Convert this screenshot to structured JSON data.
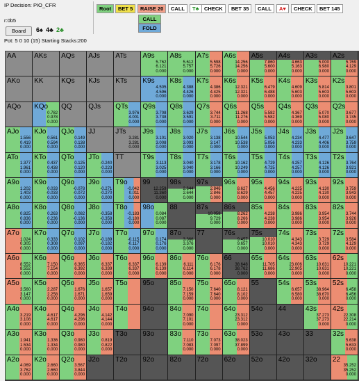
{
  "info": {
    "decision": "IP Decision:  PIO_CFR",
    "rake": "r:0b5",
    "board_button": "Board",
    "board_cards": [
      {
        "text": "6♠",
        "color": "#000000"
      },
      {
        "text": "4♣",
        "color": "#000000"
      },
      {
        "text": "2♣",
        "color": "#228b22"
      }
    ],
    "pot": "Pot: 5 0 10 (15) Starting Stacks:200"
  },
  "actions": [
    {
      "label": "Root",
      "bg": "#7fd17f"
    },
    {
      "label": "BET 5",
      "bg": "#f0e04a"
    },
    {
      "label": "RAISE 20",
      "bg": "#f1a08a"
    },
    {
      "label": "CALL",
      "bg": "#ffffff"
    },
    {
      "label": "T♣",
      "bg": "#ffffff",
      "color": "#1a8a1a"
    },
    {
      "label": "CHECK",
      "bg": "#ffffff"
    },
    {
      "label": "BET 35",
      "bg": "#ffffff"
    },
    {
      "label": "CALL",
      "bg": "#ffffff"
    },
    {
      "label": "A♥",
      "bg": "#ffffff",
      "color": "#d01010"
    },
    {
      "label": "CHECK",
      "bg": "#ffffff"
    },
    {
      "label": "BET 145",
      "bg": "#ffffff"
    }
  ],
  "sub_actions": [
    {
      "label": "CALL",
      "bg": "#7fd17f"
    },
    {
      "label": "FOLD",
      "bg": "#6fa9d8"
    }
  ],
  "colors": {
    "gray": "#8c8c8c",
    "green": "#7fd17f",
    "red": "#ec8d72",
    "blue": "#6fa9d8",
    "dark": "#555555"
  },
  "hands": [
    [
      "AA",
      "AKs",
      "AQs",
      "AJs",
      "ATs",
      "A9s",
      "A8s",
      "A7s",
      "A6s",
      "A5s",
      "A4s",
      "A3s",
      "A2s"
    ],
    [
      "AKo",
      "KK",
      "KQs",
      "KJs",
      "KTs",
      "K9s",
      "K8s",
      "K7s",
      "K6s",
      "K5s",
      "K4s",
      "K3s",
      "K2s"
    ],
    [
      "AQo",
      "KQo",
      "QQ",
      "QJs",
      "QTs",
      "Q9s",
      "Q8s",
      "Q7s",
      "Q6s",
      "Q5s",
      "Q4s",
      "Q3s",
      "Q2s"
    ],
    [
      "AJo",
      "KJo",
      "QJo",
      "JJ",
      "JTs",
      "J9s",
      "J8s",
      "J7s",
      "J6s",
      "J5s",
      "J4s",
      "J3s",
      "J2s"
    ],
    [
      "ATo",
      "KTo",
      "QTo",
      "JTo",
      "TT",
      "T9s",
      "T8s",
      "T7s",
      "T6s",
      "T5s",
      "T4s",
      "T3s",
      "T2s"
    ],
    [
      "A9o",
      "K9o",
      "Q9o",
      "J9o",
      "T9o",
      "99",
      "98s",
      "97s",
      "96s",
      "95s",
      "94s",
      "93s",
      "92s"
    ],
    [
      "A8o",
      "K8o",
      "Q8o",
      "J8o",
      "T8o",
      "98o",
      "88",
      "87s",
      "86s",
      "85s",
      "84s",
      "83s",
      "82s"
    ],
    [
      "A7o",
      "K7o",
      "Q7o",
      "J7o",
      "T7o",
      "97o",
      "87o",
      "77",
      "76s",
      "75s",
      "74s",
      "73s",
      "72s"
    ],
    [
      "A6o",
      "K6o",
      "Q6o",
      "J6o",
      "T6o",
      "96o",
      "86o",
      "76o",
      "66",
      "65s",
      "64s",
      "63s",
      "62s"
    ],
    [
      "A5o",
      "K5o",
      "Q5o",
      "J5o",
      "T5o",
      "95o",
      "85o",
      "75o",
      "65o",
      "55",
      "54s",
      "53s",
      "52s"
    ],
    [
      "A4o",
      "K4o",
      "Q4o",
      "J4o",
      "T4o",
      "94o",
      "84o",
      "74o",
      "64o",
      "54o",
      "44",
      "43s",
      "42s"
    ],
    [
      "A3o",
      "K3o",
      "Q3o",
      "J3o",
      "T3o",
      "93o",
      "83o",
      "73o",
      "63o",
      "53o",
      "43o",
      "33",
      "32s"
    ],
    [
      "A2o",
      "K2o",
      "Q2o",
      "J2o",
      "T2o",
      "92o",
      "82o",
      "72o",
      "62o",
      "52o",
      "42o",
      "32o",
      "22"
    ]
  ],
  "cells": [
    [
      "g",
      "g",
      "g",
      "g",
      "g",
      "G",
      "G",
      "GR",
      "GR",
      "GRd",
      "GRd",
      "GRd",
      "GRd"
    ],
    [
      "g",
      "g",
      "g",
      "g",
      "g",
      "B",
      "GB",
      "GR",
      "GR",
      "GR",
      "GR",
      "GR",
      "GR"
    ],
    [
      "g",
      "BG",
      "g",
      "g",
      "GB",
      "GB",
      "GB",
      "GR",
      "GR",
      "GR",
      "GR",
      "GR",
      "GR"
    ],
    [
      "GB",
      "GB",
      "GB",
      "g",
      "g",
      "GB",
      "GB",
      "GB",
      "GB",
      "GB",
      "GB",
      "GB",
      "GB"
    ],
    [
      "GB",
      "GB",
      "GB",
      "GB",
      "g",
      "GB",
      "GB",
      "GB",
      "GB",
      "GB",
      "GB",
      "GB",
      "GB"
    ],
    [
      "GB",
      "GB",
      "GB",
      "GB",
      "GBR",
      "d",
      "Gd",
      "GRd",
      "GR",
      "GR",
      "GR",
      "GR",
      "GR"
    ],
    [
      "GB",
      "GB",
      "GB",
      "GB",
      "GBR",
      "BG",
      "d",
      "Gd",
      "GRd",
      "GR",
      "GR",
      "GR",
      "GR"
    ],
    [
      "RG",
      "GB",
      "GB",
      "GB",
      "GB",
      "GB",
      "Gd",
      "d",
      "Gd",
      "GRd",
      "GR",
      "GR",
      "GR"
    ],
    [
      "RG",
      "GR",
      "GR",
      "GR",
      "GR",
      "GR",
      "GR",
      "GR",
      "d",
      "GR",
      "GR",
      "GR",
      "RG"
    ],
    [
      "RG",
      "GR",
      "GR",
      "GR",
      "GR",
      "d",
      "GR",
      "GR",
      "GR",
      "d",
      "GR",
      "GR",
      "RG"
    ],
    [
      "GR",
      "GR",
      "GR",
      "GR",
      "GR",
      "d",
      "GR",
      "GR",
      "GR",
      "d",
      "d",
      "GR",
      "RG"
    ],
    [
      "GR",
      "GR",
      "GR",
      "GR",
      "d",
      "d",
      "GR",
      "GR",
      "GR",
      "d",
      "d",
      "d",
      "GR"
    ],
    [
      "GR",
      "GR",
      "GR",
      "d",
      "d",
      "d",
      "d",
      "d",
      "d",
      "d",
      "d",
      "d",
      "RG"
    ]
  ],
  "values": [
    [
      "",
      "",
      "",
      "",
      "",
      "5.762\n6.121\n0.000",
      "5.612\n5.757\n0.000",
      "5.598\n5.726\n0.000",
      "14.256\n14.256\n0.000",
      "7.860\n5.600\n0.000",
      "4.663\n5.163\n0.000",
      "5.000\n6.980\n0.000",
      "5.769\n4.129\n0.000"
    ],
    [
      "",
      "",
      "",
      "",
      "",
      "4.505\n4.596\n0.000",
      "4.388\n4.426\n0.000",
      "4.386\n4.425\n0.000",
      "12.321\n12.321\n0.000",
      "6.479\n6.488\n0.000",
      "4.609\n5.603\n0.000",
      "5.814\n5.603\n0.000",
      "3.801\n5.603\n0.000"
    ],
    [
      "",
      "0.782\n0.978\n0.000",
      "",
      "",
      "3.976\n4.001\n0.000",
      "3.708\n3.738\n0.000",
      "3.629\n3.591\n0.000",
      "3.744\n3.711\n0.000",
      "11.268\n11.276\n0.000",
      "5.582\n5.582\n0.000",
      "4.367\n4.369\n0.000",
      "5.070\n5.080\n0.000",
      "3.677\n3.745\n0.000"
    ],
    [
      "1.556\n0.419\n0.000",
      "0.561\n0.594\n0.000",
      "0.149\n0.138\n0.000",
      "",
      "3.281\n3.281\n0.000",
      "3.101\n3.008\n0.000",
      "3.020\n3.093\n0.000",
      "3.138\n3.147\n0.000",
      "10.544\n10.538\n0.000",
      "5.053\n5.056\n0.000",
      "4.234\n4.233\n0.000",
      "4.477\n4.406\n0.000",
      "3.647\n3.759\n0.000"
    ],
    [
      "1.377\n1.961\n0.000",
      "0.437\n0.438\n0.000",
      "0.125\n0.120\n0.000",
      "-0.240\n-0.223\n0.000",
      "",
      "3.113\n3.025\n0.000",
      "3.040\n3.040\n0.000",
      "3.178\n3.166\n0.000",
      "10.162\n10.249\n0.000",
      "4.729\n4.725\n0.000",
      "4.257\n4.257\n0.000",
      "4.126\n4.126\n0.000",
      "3.764\n3.921\n0.000"
    ],
    [
      "1.202\n1.403\n0.000",
      "0.033\n-0.033\n0.000",
      "-0.078\n-0.072\n0.000",
      "-0.271\n-0.270\n0.000",
      "-0.042\n0.011\n0.000",
      "12.259\n11.360\n0.000",
      "2.644\n2.644\n0.000",
      "2.846\n2.846\n0.000",
      "8.627\n8.629\n0.000",
      "4.456\n4.457\n0.000",
      "4.225\n4.225\n0.000",
      "4.130\n4.130\n0.000",
      "3.759\n3.943\n0.000"
    ],
    [
      "0.825\n0.836\n0.000",
      "0.263\n0.236\n0.000",
      "0.082\n-0.136\n0.000",
      "-0.358\n-0.358\n0.000",
      "-0.183\n-0.180\n0.000",
      "0.084\n0.087\n0.000",
      "",
      "10.058\n9.729\n0.000",
      "8.262\n8.266\n0.000",
      "4.238\n4.238\n0.000",
      "3.986\n3.986\n0.000",
      "3.954\n3.954\n0.000",
      "3.744\n3.926\n0.000"
    ],
    [
      "1.024\n0.305\n0.000",
      "0.333\n0.308\n0.000",
      "0.102\n0.097\n0.000",
      "-0.189\n-0.182\n0.000",
      "-0.115\n-0.117\n0.000",
      "0.174\n0.176\n0.000",
      "3.366\n3.376\n0.000",
      "",
      "9.457\n9.657\n0.000",
      "10.010\n10.010\n0.000",
      "4.343\n4.343\n0.000",
      "3.729\n3.729\n0.000",
      "3.584\n4.129\n0.000"
    ],
    [
      "8.552\n8.552\n0.000",
      "7.150\n7.154\n0.000",
      "6.365\n6.392\n0.000",
      "6.337\n6.339\n0.000",
      "6.337\n6.337\n0.000",
      "6.139\n6.139\n0.000",
      "6.111\n6.114\n0.000",
      "6.176\n6.178\n0.000",
      "38.648\n38.762\n0.000",
      "11.705\n11.686\n0.000",
      "23.006\n22.905\n0.000",
      "10.631\n10.631\n0.000",
      "10.221\n10.221\n0.000"
    ],
    [
      "3.560\n3.147\n0.000",
      "2.287\n2.258\n0.000",
      "1.676\n1.671\n0.000",
      "1.657\n1.659\n0.000",
      "",
      "",
      "7.150\n7.159\n0.000",
      "7.640\n7.640\n0.000",
      "8.121\n8.102\n0.000",
      "",
      "6.657\n6.580\n0.000",
      "38.964\n38.670\n0.000",
      "6.458\n6.456\n0.000"
    ],
    [
      "3.219\n3.108\n0.000",
      "4.617\n4.617\n0.000",
      "4.296\n4.296\n0.000",
      "4.142\n4.144\n0.000",
      "",
      "",
      "7.090\n7.101\n0.000",
      "",
      "23.312\n23.312\n0.000",
      "",
      "",
      "37.273\n37.273\n0.000",
      "22.308\n22.214\n0.000"
    ],
    [
      "1.941\n1.534\n0.000",
      "1.336\n1.334\n0.000",
      "0.980\n0.980\n0.000",
      "0.819\n0.822\n0.000",
      "",
      "",
      "7.110\n7.083\n0.000",
      "7.073\n7.097\n0.000",
      "38.023\n37.899\n0.000",
      "",
      "",
      "",
      "5.638\n5.633\n0.000"
    ],
    [
      "4.069\n3.762\n0.000",
      "2.660\n2.660\n0.000",
      "3.567\n3.844\n0.000",
      "",
      "",
      "",
      "",
      "",
      "",
      "",
      "",
      "",
      "35.252\n35.252\n0.000"
    ]
  ]
}
